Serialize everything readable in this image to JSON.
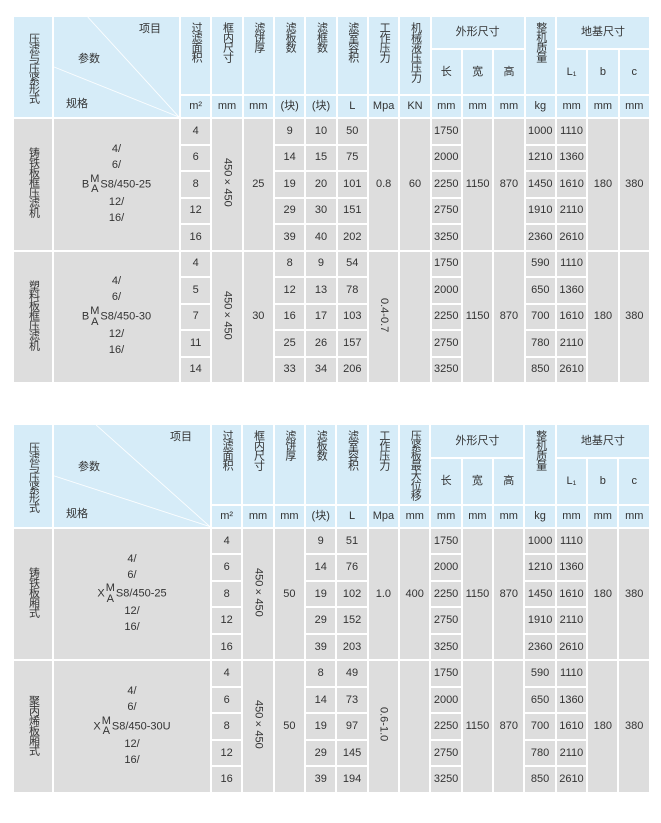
{
  "colors": {
    "header_bg": "#d6ecf8",
    "body_bg": "#dddddd",
    "border": "#ffffff"
  },
  "tables": [
    {
      "header": {
        "form": "压滤与压紧形式",
        "item": "项目",
        "param": "参数",
        "spec": "规格"
      },
      "columns": [
        {
          "key": "area",
          "label": "过滤面积",
          "unit": "m²"
        },
        {
          "key": "frame",
          "label": "框内尺寸",
          "unit": "mm"
        },
        {
          "key": "cake",
          "label": "滤饼厚",
          "unit": "mm"
        },
        {
          "key": "plates",
          "label": "滤板数",
          "unit": "(块)"
        },
        {
          "key": "frames",
          "label": "滤框数",
          "unit": "(块)"
        },
        {
          "key": "volume",
          "label": "滤室容积",
          "unit": "L"
        },
        {
          "key": "pressure",
          "label": "工作压力",
          "unit": "Mpa"
        },
        {
          "key": "hydraulic",
          "label": "机械液压压力",
          "unit": "KN"
        },
        {
          "key": "length",
          "label": "长",
          "unit": "mm",
          "group": "外形尺寸"
        },
        {
          "key": "width",
          "label": "宽",
          "unit": "mm",
          "group": "外形尺寸"
        },
        {
          "key": "height",
          "label": "高",
          "unit": "mm",
          "group": "外形尺寸"
        },
        {
          "key": "mass",
          "label": "整机质量",
          "unit": "kg"
        },
        {
          "key": "l1",
          "label": "L₁",
          "unit": "mm",
          "group": "地基尺寸"
        },
        {
          "key": "b",
          "label": "b",
          "unit": "mm",
          "group": "地基尺寸"
        },
        {
          "key": "c",
          "label": "c",
          "unit": "mm",
          "group": "地基尺寸"
        }
      ],
      "groups": [
        {
          "form": "铸铁板框压滤机",
          "spec": {
            "prefix": "B",
            "sup": "M",
            "sub": "A",
            "suffix": "S8/450-25",
            "sizes_before": [
              "4/",
              "6/"
            ],
            "sizes_after": [
              "12/",
              "16/"
            ]
          },
          "values": {
            "area": [
              "4",
              "6",
              "8",
              "12",
              "16"
            ],
            "frame": "450×450",
            "cake": "25",
            "plates": [
              "9",
              "14",
              "19",
              "29",
              "39"
            ],
            "frames": [
              "10",
              "15",
              "20",
              "30",
              "40"
            ],
            "volume": [
              "50",
              "75",
              "101",
              "151",
              "202"
            ],
            "pressure": "0.8",
            "hydraulic": "60",
            "length": [
              "1750",
              "2000",
              "2250",
              "2750",
              "3250"
            ],
            "width": "1150",
            "height": "870",
            "mass": [
              "1000",
              "1210",
              "1450",
              "1910",
              "2360"
            ],
            "l1": [
              "1110",
              "1360",
              "1610",
              "2110",
              "2610"
            ],
            "b": "180",
            "c": "380"
          }
        },
        {
          "form": "塑料板框压滤机",
          "spec": {
            "prefix": "B",
            "sup": "M",
            "sub": "A",
            "suffix": "S8/450-30",
            "sizes_before": [
              "4/",
              "6/"
            ],
            "sizes_after": [
              "12/",
              "16/"
            ]
          },
          "values": {
            "area": [
              "4",
              "5",
              "7",
              "11",
              "14"
            ],
            "frame": "450×450",
            "cake": "30",
            "plates": [
              "8",
              "12",
              "16",
              "25",
              "33"
            ],
            "frames": [
              "9",
              "13",
              "17",
              "26",
              "34"
            ],
            "volume": [
              "54",
              "78",
              "103",
              "157",
              "206"
            ],
            "pressure": "0.4-0.7",
            "hydraulic": "",
            "length": [
              "1750",
              "2000",
              "2250",
              "2750",
              "3250"
            ],
            "width": "1150",
            "height": "870",
            "mass": [
              "590",
              "650",
              "700",
              "780",
              "850"
            ],
            "l1": [
              "1110",
              "1360",
              "1610",
              "2110",
              "2610"
            ],
            "b": "180",
            "c": "380"
          }
        }
      ]
    },
    {
      "header": {
        "form": "压滤与压紧形式",
        "item": "项目",
        "param": "参数",
        "spec": "规格"
      },
      "columns": [
        {
          "key": "area",
          "label": "过滤面积",
          "unit": "m²"
        },
        {
          "key": "frame",
          "label": "框内尺寸",
          "unit": "mm"
        },
        {
          "key": "cake",
          "label": "滤饼厚",
          "unit": "mm"
        },
        {
          "key": "plates",
          "label": "滤板数",
          "unit": "(块)"
        },
        {
          "key": "volume",
          "label": "滤室容积",
          "unit": "L"
        },
        {
          "key": "pressure",
          "label": "工作压力",
          "unit": "Mpa"
        },
        {
          "key": "stroke",
          "label": "压紧板最大位移",
          "unit": "mm"
        },
        {
          "key": "length",
          "label": "长",
          "unit": "mm",
          "group": "外形尺寸"
        },
        {
          "key": "width",
          "label": "宽",
          "unit": "mm",
          "group": "外形尺寸"
        },
        {
          "key": "height",
          "label": "高",
          "unit": "mm",
          "group": "外形尺寸"
        },
        {
          "key": "mass",
          "label": "整机质量",
          "unit": "kg"
        },
        {
          "key": "l1",
          "label": "L₁",
          "unit": "mm",
          "group": "地基尺寸"
        },
        {
          "key": "b",
          "label": "b",
          "unit": "mm",
          "group": "地基尺寸"
        },
        {
          "key": "c",
          "label": "c",
          "unit": "mm",
          "group": "地基尺寸"
        }
      ],
      "groups": [
        {
          "form": "铸铁板厢式",
          "spec": {
            "prefix": "X",
            "sup": "M",
            "sub": "A",
            "suffix": "S8/450-25",
            "sizes_before": [
              "4/",
              "6/"
            ],
            "sizes_after": [
              "12/",
              "16/"
            ]
          },
          "values": {
            "area": [
              "4",
              "6",
              "8",
              "12",
              "16"
            ],
            "frame": "450×450",
            "cake": "50",
            "plates": [
              "9",
              "14",
              "19",
              "29",
              "39"
            ],
            "volume": [
              "51",
              "76",
              "102",
              "152",
              "203"
            ],
            "pressure": "1.0",
            "stroke": "400",
            "length": [
              "1750",
              "2000",
              "2250",
              "2750",
              "3250"
            ],
            "width": "1150",
            "height": "870",
            "mass": [
              "1000",
              "1210",
              "1450",
              "1910",
              "2360"
            ],
            "l1": [
              "1110",
              "1360",
              "1610",
              "2110",
              "2610"
            ],
            "b": "180",
            "c": "380"
          }
        },
        {
          "form": "聚丙烯板厢式",
          "spec": {
            "prefix": "X",
            "sup": "M",
            "sub": "A",
            "suffix": "S8/450-30U",
            "sizes_before": [
              "4/",
              "6/"
            ],
            "sizes_after": [
              "12/",
              "16/"
            ]
          },
          "values": {
            "area": [
              "4",
              "6",
              "8",
              "12",
              "16"
            ],
            "frame": "450×450",
            "cake": "50",
            "plates": [
              "8",
              "14",
              "19",
              "29",
              "39"
            ],
            "volume": [
              "49",
              "73",
              "97",
              "145",
              "194"
            ],
            "pressure": "0.6-1.0",
            "stroke": "",
            "length": [
              "1750",
              "2000",
              "2250",
              "2750",
              "3250"
            ],
            "width": "1150",
            "height": "870",
            "mass": [
              "590",
              "650",
              "700",
              "780",
              "850"
            ],
            "l1": [
              "1110",
              "1360",
              "1610",
              "2110",
              "2610"
            ],
            "b": "180",
            "c": "380"
          }
        }
      ]
    }
  ]
}
